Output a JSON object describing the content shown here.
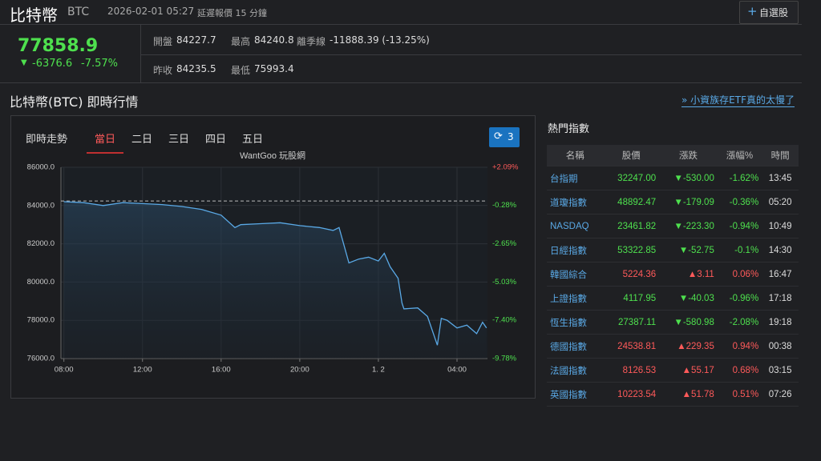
{
  "header": {
    "title": "比特幣",
    "symbol": "BTC",
    "datetime": "2026-02-01 05:27",
    "delay_note": "延遲報價 15 分鐘",
    "watchlist_button": "自選股"
  },
  "quote": {
    "price": "77858.9",
    "change": "-6376.6",
    "change_pct": "-7.57%"
  },
  "stats": [
    {
      "label": "開盤",
      "value": "84227.7"
    },
    {
      "label": "最高",
      "value": "84240.8"
    },
    {
      "label": "離季線",
      "value": "-11888.39 (-13.25%)"
    },
    {
      "label": "昨收",
      "value": "84235.5"
    },
    {
      "label": "最低",
      "value": "75993.4"
    }
  ],
  "section_title": "比特幣(BTC) 即時行情",
  "promo_link": "» 小資族存ETF真的太慢了",
  "chart_panel": {
    "title": "即時走勢",
    "tabs": [
      "當日",
      "二日",
      "三日",
      "四日",
      "五日"
    ],
    "active_tab": 0,
    "refresh_button": "3"
  },
  "chart_data": {
    "type": "line",
    "title": "WantGoo 玩股網",
    "color": "#5aa9e6",
    "x": [
      8,
      9,
      10,
      11,
      12,
      13,
      14,
      15,
      16,
      16.7,
      17,
      18,
      19,
      20,
      21,
      21.7,
      22,
      22.5,
      23,
      23.5,
      24,
      24.3,
      24.6,
      25,
      25.2,
      25.3,
      26,
      26.5,
      27,
      27.2,
      27.5,
      28,
      28.5,
      29,
      29.3,
      29.5
    ],
    "values": [
      84200,
      84150,
      84000,
      84150,
      84100,
      84050,
      83950,
      83800,
      83500,
      82850,
      83000,
      83050,
      83100,
      82950,
      82850,
      82700,
      82850,
      81000,
      81200,
      81300,
      81100,
      81500,
      80800,
      80200,
      78900,
      78600,
      78650,
      78200,
      76700,
      78100,
      78000,
      77600,
      77750,
      77300,
      77900,
      77600
    ],
    "reference_line": 84235.5,
    "xlim": [
      7.85,
      29.55
    ],
    "xticks": [
      {
        "value": 8,
        "label": "08:00"
      },
      {
        "value": 12,
        "label": "12:00"
      },
      {
        "value": 16,
        "label": "16:00"
      },
      {
        "value": 20,
        "label": "20:00"
      },
      {
        "value": 24,
        "label": "1. 2"
      },
      {
        "value": 28,
        "label": "04:00"
      }
    ],
    "ylim": [
      76000,
      86000
    ],
    "yticks": [
      {
        "value": 76000,
        "label": "76000.0"
      },
      {
        "value": 78000,
        "label": "78000.0"
      },
      {
        "value": 80000,
        "label": "80000.0"
      },
      {
        "value": 82000,
        "label": "82000.0"
      },
      {
        "value": 84000,
        "label": "84000.0"
      },
      {
        "value": 86000,
        "label": "86000.0"
      }
    ],
    "y2lim": [
      -9.78,
      2.09
    ],
    "y2ticks": [
      {
        "value": 2.09,
        "label": "+2.09%"
      },
      {
        "value": -0.28,
        "label": "-0.28%"
      },
      {
        "value": -2.65,
        "label": "-2.65%"
      },
      {
        "value": -5.03,
        "label": "-5.03%"
      },
      {
        "value": -7.4,
        "label": "-7.40%"
      },
      {
        "value": -9.78,
        "label": "-9.78%"
      }
    ],
    "grid": true
  },
  "hot_indices": {
    "title": "熱門指數",
    "columns": [
      "名稱",
      "股價",
      "漲跌",
      "漲幅%",
      "時間"
    ],
    "rows": [
      [
        "台指期",
        "32247.00",
        "▼-530.00",
        "-1.62%",
        "13:45"
      ],
      [
        "道瓊指數",
        "48892.47",
        "▼-179.09",
        "-0.36%",
        "05:20"
      ],
      [
        "NASDAQ",
        "23461.82",
        "▼-223.30",
        "-0.94%",
        "10:49"
      ],
      [
        "日經指數",
        "53322.85",
        "▼-52.75",
        "-0.1%",
        "14:30"
      ],
      [
        "韓國綜合",
        "5224.36",
        "▲3.11",
        "0.06%",
        "16:47"
      ],
      [
        "上證指數",
        "4117.95",
        "▼-40.03",
        "-0.96%",
        "17:18"
      ],
      [
        "恆生指數",
        "27387.11",
        "▼-580.98",
        "-2.08%",
        "19:18"
      ],
      [
        "德國指數",
        "24538.81",
        "▲229.35",
        "0.94%",
        "00:38"
      ],
      [
        "法國指數",
        "8126.53",
        "▲55.17",
        "0.68%",
        "03:15"
      ],
      [
        "英國指數",
        "10223.54",
        "▲51.78",
        "0.51%",
        "07:26"
      ]
    ]
  }
}
